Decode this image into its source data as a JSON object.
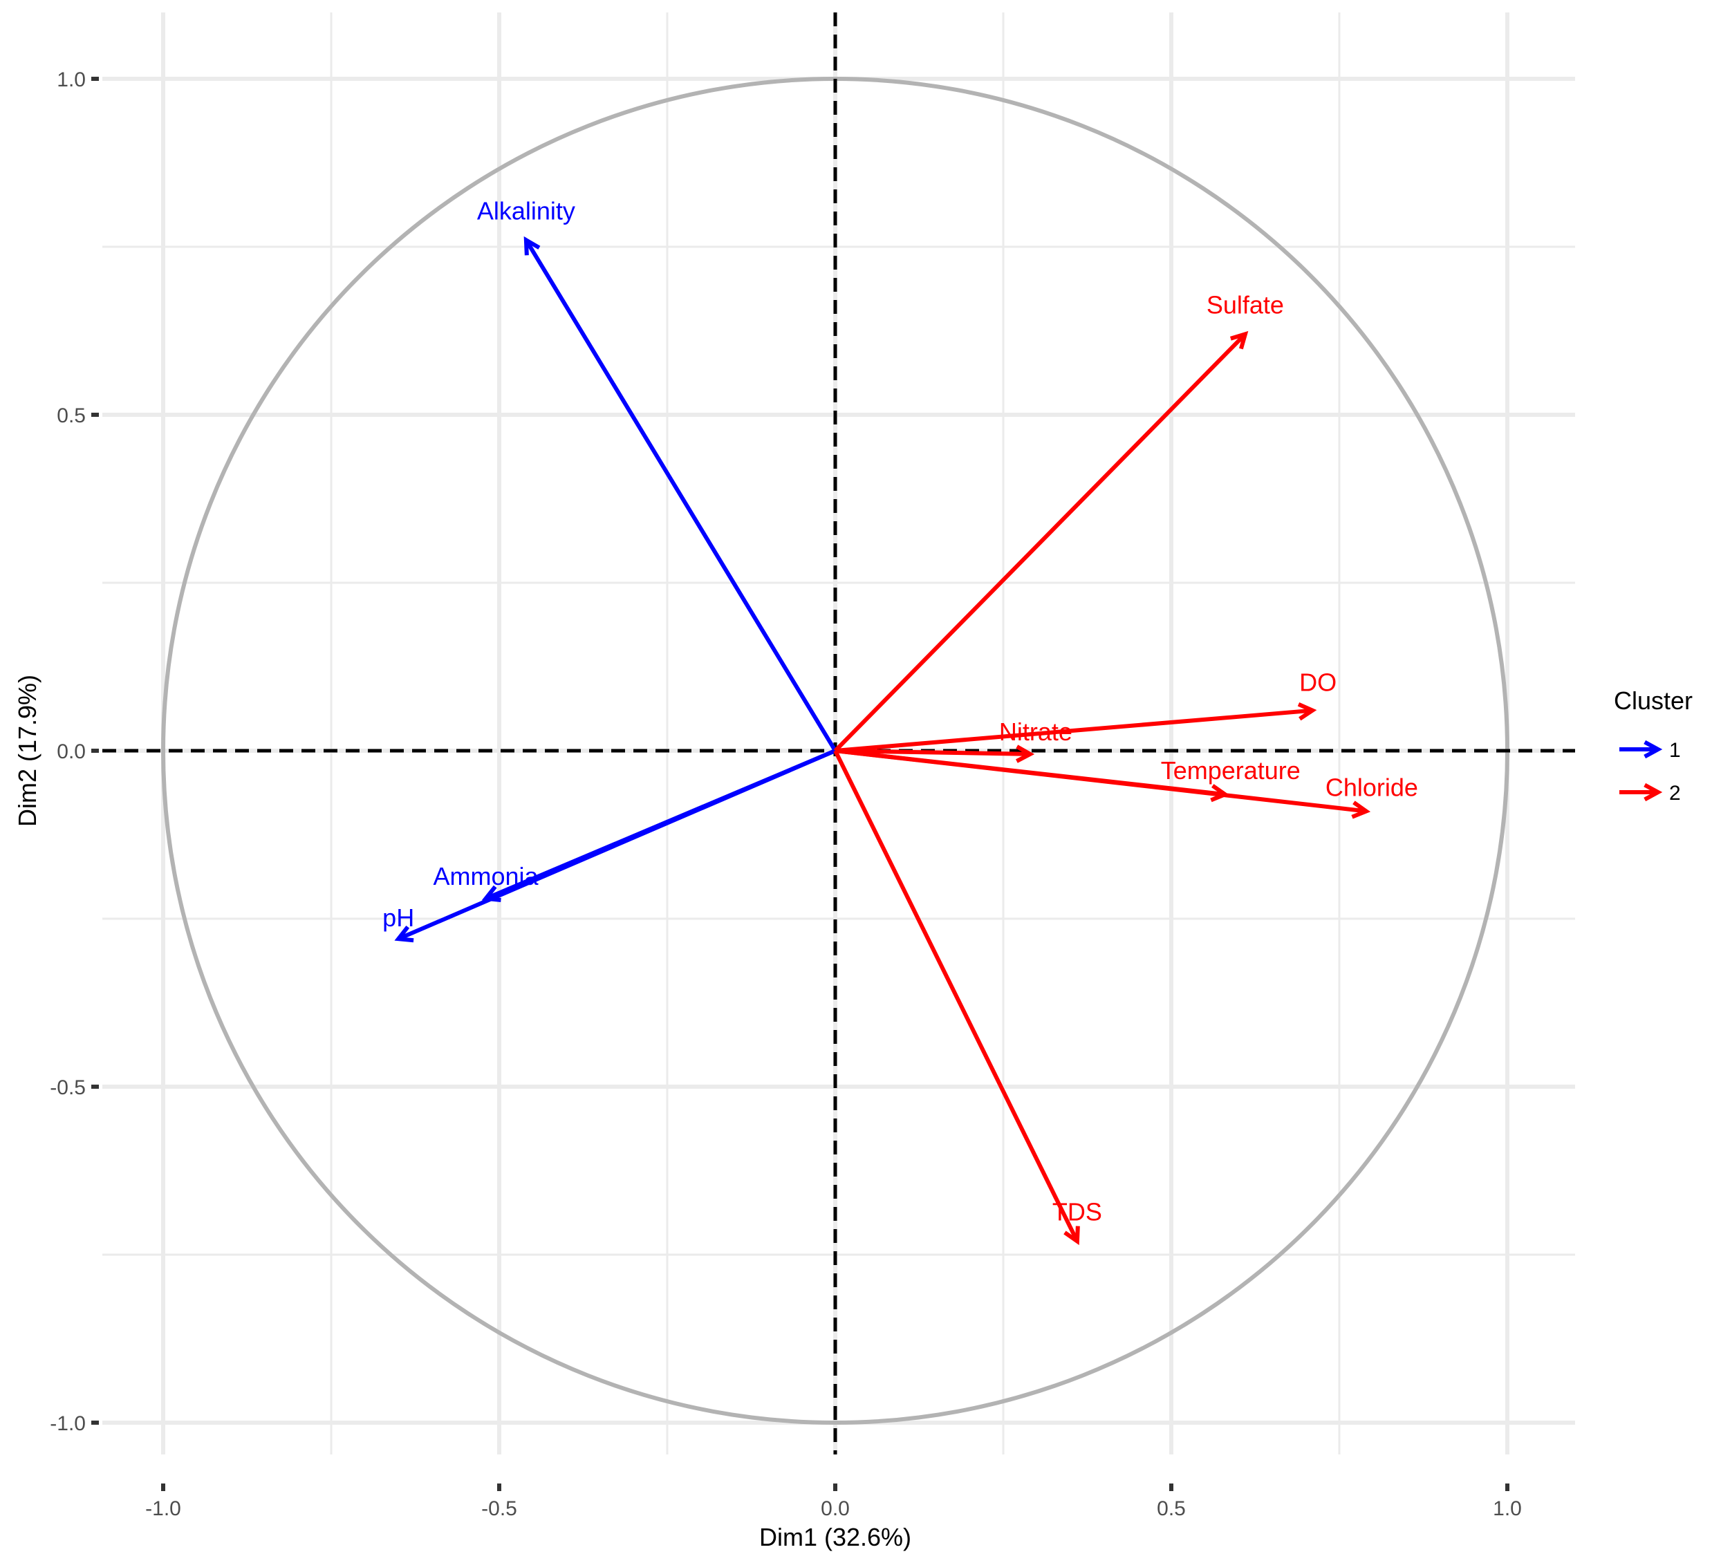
{
  "chart_data": {
    "type": "scatter",
    "subtype": "pca-variable-correlation-circle",
    "title": "",
    "xlabel": "Dim1 (32.6%)",
    "ylabel": "Dim2 (17.9%)",
    "xlim": [
      -1.1,
      1.1
    ],
    "ylim": [
      -1.05,
      1.1
    ],
    "x_ticks": [
      -1.0,
      -0.5,
      0.0,
      0.5,
      1.0
    ],
    "x_tick_labels": [
      "-1.0",
      "-0.5",
      "0.0",
      "0.5",
      "1.0"
    ],
    "y_ticks": [
      -1.0,
      -0.5,
      0.0,
      0.5,
      1.0
    ],
    "y_tick_labels": [
      "-1.0",
      "-0.5",
      "0.0",
      "0.5",
      "1.0"
    ],
    "grid": true,
    "unit_circle": true,
    "legend": {
      "title": "Cluster",
      "placement": "right",
      "entries": [
        {
          "label": "1",
          "color": "#0000ff"
        },
        {
          "label": "2",
          "color": "#ff0000"
        }
      ]
    },
    "series": [
      {
        "name": "1",
        "color": "#0000ff",
        "points": [
          {
            "label": "Alkalinity",
            "x": -0.46,
            "y": 0.76
          },
          {
            "label": "Ammonia",
            "x": -0.52,
            "y": -0.22
          },
          {
            "label": "pH",
            "x": -0.65,
            "y": -0.28
          }
        ]
      },
      {
        "name": "2",
        "color": "#ff0000",
        "points": [
          {
            "label": "Sulfate",
            "x": 0.61,
            "y": 0.62
          },
          {
            "label": "DO",
            "x": 0.71,
            "y": 0.06
          },
          {
            "label": "Nitrate",
            "x": 0.29,
            "y": -0.005
          },
          {
            "label": "Temperature",
            "x": 0.58,
            "y": -0.065
          },
          {
            "label": "Chloride",
            "x": 0.79,
            "y": -0.09
          },
          {
            "label": "TDS",
            "x": 0.36,
            "y": -0.73
          }
        ]
      }
    ]
  }
}
